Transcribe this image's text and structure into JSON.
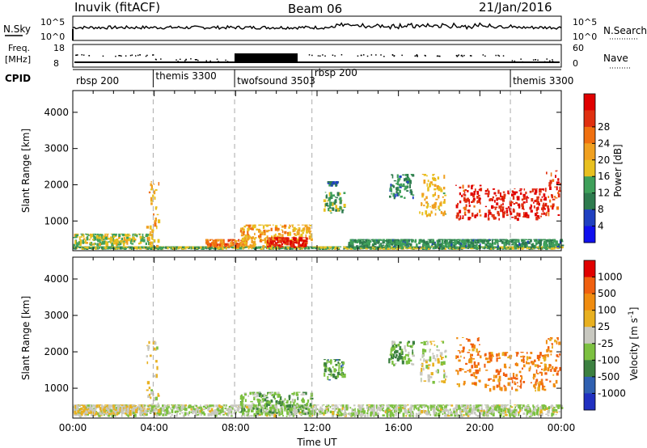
{
  "header": {
    "radar": "Inuvik (fitACF)",
    "beam": "Beam 06",
    "date": "21/Jan/2016"
  },
  "noise_panel": {
    "left_label": "N.Sky",
    "left_ticks": [
      "10^5",
      "10^0"
    ],
    "right_label": "N.Search",
    "right_ticks": [
      "10^5",
      "10^0"
    ]
  },
  "freq_panel": {
    "left_label_1": "Freq.",
    "left_label_2": "[MHz]",
    "left_ticks": [
      "18",
      "8"
    ],
    "right_label": "Nave",
    "right_ticks": [
      "60",
      "0"
    ]
  },
  "cpid_panel": {
    "label": "CPID",
    "modes": [
      {
        "name": "rbsp 200",
        "start": 0.0
      },
      {
        "name": "themis 3300",
        "start": 3.95
      },
      {
        "name": "twofsound 3503",
        "start": 7.95
      },
      {
        "name": "rbsp 200",
        "start": 11.75
      },
      {
        "name": "themis 3300",
        "start": 21.5
      }
    ]
  },
  "colors": {
    "power_scale": [
      "#1010ee",
      "#2040c0",
      "#2e7b4e",
      "#3fa05a",
      "#e8c020",
      "#f0a020",
      "#f07010",
      "#e03010",
      "#e00000"
    ],
    "velocity_scale": [
      "#2030c0",
      "#3060b0",
      "#3c8040",
      "#7cc040",
      "#c8c8c0",
      "#e8b020",
      "#f08c10",
      "#f06010",
      "#e00000"
    ],
    "dashed_line": "#aaaaaa"
  },
  "chart_data": [
    {
      "type": "heatmap",
      "name": "power",
      "ylabel": "Slant Range [km]",
      "x_range_hours": [
        0,
        24
      ],
      "ylim": [
        180,
        4600
      ],
      "y_ticks": [
        1000,
        2000,
        3000,
        4000
      ],
      "colorbar_label": "Power [dB]",
      "colorbar_ticks": [
        4,
        8,
        12,
        16,
        20,
        24,
        28
      ],
      "mode_boundaries_hours": [
        3.95,
        7.95,
        11.75,
        21.5
      ],
      "regions": [
        {
          "t0": 0,
          "t1": 24,
          "r0": 200,
          "r1": 300,
          "level": 0.4
        },
        {
          "t0": 0,
          "t1": 4,
          "r0": 300,
          "r1": 650,
          "level": 0.45
        },
        {
          "t0": 3.6,
          "t1": 4.2,
          "r0": 250,
          "r1": 2200,
          "level": 0.6
        },
        {
          "t0": 6.5,
          "t1": 8.5,
          "r0": 250,
          "r1": 500,
          "level": 0.75
        },
        {
          "t0": 8.2,
          "t1": 11.7,
          "r0": 250,
          "r1": 900,
          "level": 0.6
        },
        {
          "t0": 9.5,
          "t1": 11.5,
          "r0": 250,
          "r1": 550,
          "level": 0.95
        },
        {
          "t0": 12.3,
          "t1": 13.3,
          "r0": 1200,
          "r1": 1800,
          "level": 0.35
        },
        {
          "t0": 12.5,
          "t1": 13.0,
          "r0": 1900,
          "r1": 2100,
          "level": 0.2
        },
        {
          "t0": 15.5,
          "t1": 16.7,
          "r0": 1600,
          "r1": 2300,
          "level": 0.3
        },
        {
          "t0": 17.0,
          "t1": 18.3,
          "r0": 1100,
          "r1": 2300,
          "level": 0.55
        },
        {
          "t0": 18.8,
          "t1": 20.0,
          "r0": 1000,
          "r1": 2000,
          "level": 0.9
        },
        {
          "t0": 20.2,
          "t1": 23.2,
          "r0": 1000,
          "r1": 1900,
          "level": 0.95
        },
        {
          "t0": 23.2,
          "t1": 23.9,
          "r0": 1100,
          "r1": 2400,
          "level": 0.85
        },
        {
          "t0": 13.5,
          "t1": 24,
          "r0": 250,
          "r1": 500,
          "level": 0.3
        }
      ]
    },
    {
      "type": "heatmap",
      "name": "velocity",
      "ylabel": "Slant Range [km]",
      "xlabel": "Time UT",
      "x_range_hours": [
        0,
        24
      ],
      "x_ticks": [
        "00:00",
        "04:00",
        "08:00",
        "12:00",
        "16:00",
        "20:00",
        "00:00"
      ],
      "ylim": [
        180,
        4600
      ],
      "y_ticks": [
        1000,
        2000,
        3000,
        4000
      ],
      "colorbar_label": "Velocity [m s^-1]",
      "colorbar_ticks": [
        1000,
        500,
        100,
        25,
        -25,
        -100,
        -500,
        -1000
      ],
      "mode_boundaries_hours": [
        3.95,
        7.95,
        11.75,
        21.5
      ],
      "regions": [
        {
          "t0": 0,
          "t1": 24,
          "r0": 200,
          "r1": 550,
          "level": 0.45
        },
        {
          "t0": 0,
          "t1": 3.5,
          "r0": 250,
          "r1": 550,
          "level": 0.55
        },
        {
          "t0": 3.6,
          "t1": 4.2,
          "r0": 250,
          "r1": 2300,
          "level": 0.55
        },
        {
          "t0": 8.2,
          "t1": 11.7,
          "r0": 250,
          "r1": 900,
          "level": 0.35
        },
        {
          "t0": 12.3,
          "t1": 13.3,
          "r0": 1200,
          "r1": 1800,
          "level": 0.3
        },
        {
          "t0": 15.5,
          "t1": 16.7,
          "r0": 1600,
          "r1": 2300,
          "level": 0.35
        },
        {
          "t0": 17.0,
          "t1": 18.3,
          "r0": 1100,
          "r1": 2300,
          "level": 0.5
        },
        {
          "t0": 18.8,
          "t1": 20.0,
          "r0": 1000,
          "r1": 2400,
          "level": 0.78
        },
        {
          "t0": 20.2,
          "t1": 23.2,
          "r0": 900,
          "r1": 2000,
          "level": 0.8
        },
        {
          "t0": 23.2,
          "t1": 23.9,
          "r0": 1000,
          "r1": 2400,
          "level": 0.8
        }
      ]
    }
  ]
}
